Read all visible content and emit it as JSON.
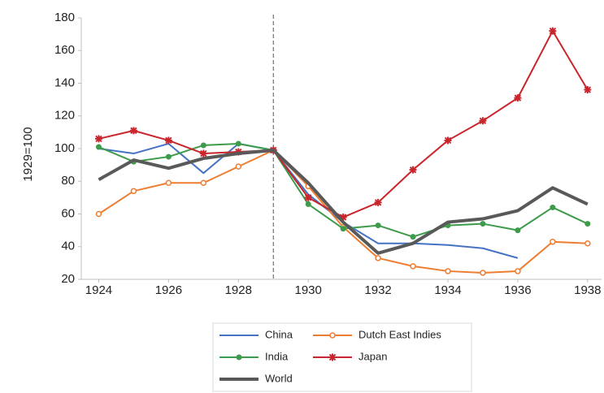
{
  "chart_data": {
    "type": "line",
    "y_label": "1929=100",
    "x": [
      1924,
      1925,
      1926,
      1927,
      1928,
      1929,
      1930,
      1931,
      1932,
      1933,
      1934,
      1935,
      1936,
      1937,
      1938
    ],
    "xlim": [
      1923.5,
      1938.4
    ],
    "xticks": [
      1924,
      1926,
      1928,
      1930,
      1932,
      1934,
      1936,
      1938
    ],
    "ylim": [
      20,
      180
    ],
    "yticks": [
      20,
      40,
      60,
      80,
      100,
      120,
      140,
      160,
      180
    ],
    "vline": 1929,
    "series": [
      {
        "name": "China",
        "color": "#4472c4",
        "marker": "none",
        "values": [
          100,
          97,
          103,
          85,
          103,
          99,
          72,
          55,
          42,
          42,
          41,
          39,
          33,
          null,
          null
        ]
      },
      {
        "name": "Dutch East Indies",
        "color": "#ed7d31",
        "marker": "open-circle",
        "values": [
          60,
          74,
          79,
          79,
          89,
          99,
          77,
          52,
          33,
          28,
          25,
          24,
          25,
          43,
          42
        ]
      },
      {
        "name": "India",
        "color": "#3d9b4b",
        "marker": "circle",
        "values": [
          101,
          92,
          95,
          102,
          103,
          99,
          66,
          51,
          53,
          46,
          53,
          54,
          50,
          64,
          54
        ]
      },
      {
        "name": "Japan",
        "color": "#c9252c",
        "marker": "star",
        "values": [
          106,
          111,
          105,
          97,
          98,
          99,
          70,
          58,
          67,
          87,
          105,
          117,
          131,
          172,
          136
        ]
      },
      {
        "name": "World",
        "color": "#595959",
        "marker": "none",
        "width": 4,
        "values": [
          81,
          93,
          88,
          94,
          97,
          99,
          79,
          55,
          36,
          42,
          55,
          57,
          62,
          76,
          66
        ]
      }
    ]
  }
}
